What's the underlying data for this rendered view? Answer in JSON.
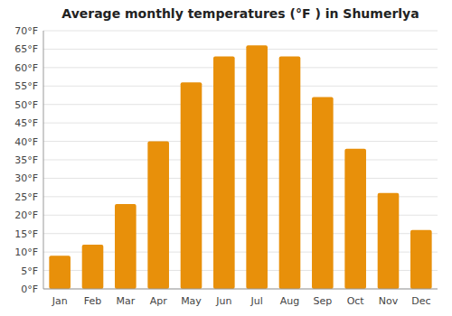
{
  "chart_data": {
    "type": "bar",
    "title": "Average monthly temperatures (°F ) in Shumerlya",
    "categories": [
      "Jan",
      "Feb",
      "Mar",
      "Apr",
      "May",
      "Jun",
      "Jul",
      "Aug",
      "Sep",
      "Oct",
      "Nov",
      "Dec"
    ],
    "values": [
      9,
      12,
      23,
      40,
      56,
      63,
      66,
      63,
      52,
      38,
      26,
      16
    ],
    "color": "#E8900A",
    "ylim": [
      0,
      70
    ],
    "yticks": [
      {
        "value": 0,
        "label": "0°F"
      },
      {
        "value": 5,
        "label": "5°F"
      },
      {
        "value": 10,
        "label": "10°F"
      },
      {
        "value": 15,
        "label": "15°F"
      },
      {
        "value": 20,
        "label": "20°F"
      },
      {
        "value": 25,
        "label": "25°F"
      },
      {
        "value": 30,
        "label": "30°F"
      },
      {
        "value": 35,
        "label": "35°F"
      },
      {
        "value": 40,
        "label": "40°F"
      },
      {
        "value": 45,
        "label": "45°F"
      },
      {
        "value": 50,
        "label": "50°F"
      },
      {
        "value": 55,
        "label": "55°F"
      },
      {
        "value": 60,
        "label": "60°F"
      },
      {
        "value": 65,
        "label": "65°F"
      },
      {
        "value": 70,
        "label": "70°F"
      }
    ],
    "grid": true
  }
}
